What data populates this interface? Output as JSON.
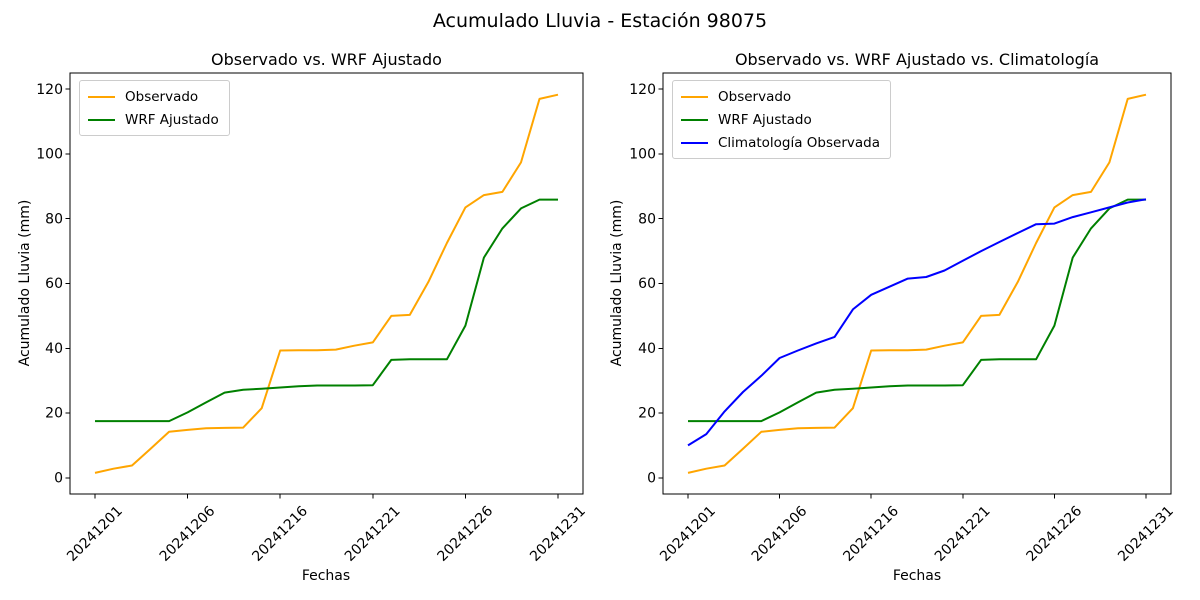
{
  "suptitle": "Acumulado Lluvia - Estación 98075",
  "background": "#ffffff",
  "text_color": "#000000",
  "chart_data": [
    {
      "type": "line",
      "title": "Observado vs. WRF Ajustado",
      "xlabel": "Fechas",
      "ylabel": "Acumulado Lluvia (mm)",
      "ylim": [
        -5,
        125
      ],
      "yticks": [
        0,
        20,
        40,
        60,
        80,
        100,
        120
      ],
      "xticks": {
        "positions": [
          0,
          5,
          10,
          15,
          20,
          25
        ],
        "labels": [
          "20241201",
          "20241206",
          "20241216",
          "20241221",
          "20241226",
          "20241231"
        ]
      },
      "x_count": 26,
      "grid": false,
      "legend_position": "upper-left",
      "tick_rotation": 45,
      "series": [
        {
          "name": "Observado",
          "color": "#FFA500",
          "values": [
            1.5,
            2.8,
            3.8,
            9.0,
            14.2,
            14.8,
            15.3,
            15.4,
            15.5,
            21.5,
            39.3,
            39.4,
            39.4,
            39.6,
            40.8,
            41.8,
            50.0,
            50.3,
            60.5,
            72.5,
            83.5,
            87.3,
            88.3,
            97.4,
            117.0,
            118.3
          ]
        },
        {
          "name": "WRF Ajustado",
          "color": "#008000",
          "values": [
            17.5,
            17.5,
            17.5,
            17.5,
            17.5,
            20.2,
            23.3,
            26.3,
            27.2,
            27.5,
            27.9,
            28.3,
            28.5,
            28.5,
            28.5,
            28.6,
            36.4,
            36.6,
            36.6,
            36.6,
            47.0,
            68.0,
            77.0,
            83.2,
            85.9,
            85.9
          ]
        }
      ]
    },
    {
      "type": "line",
      "title": "Observado vs. WRF Ajustado vs. Climatología",
      "xlabel": "Fechas",
      "ylabel": "Acumulado Lluvia (mm)",
      "ylim": [
        -5,
        125
      ],
      "yticks": [
        0,
        20,
        40,
        60,
        80,
        100,
        120
      ],
      "xticks": {
        "positions": [
          0,
          5,
          10,
          15,
          20,
          25
        ],
        "labels": [
          "20241201",
          "20241206",
          "20241216",
          "20241221",
          "20241226",
          "20241231"
        ]
      },
      "x_count": 26,
      "grid": false,
      "legend_position": "upper-left",
      "tick_rotation": 45,
      "series": [
        {
          "name": "Observado",
          "color": "#FFA500",
          "values": [
            1.5,
            2.8,
            3.8,
            9.0,
            14.2,
            14.8,
            15.3,
            15.4,
            15.5,
            21.5,
            39.3,
            39.4,
            39.4,
            39.6,
            40.8,
            41.8,
            50.0,
            50.3,
            60.5,
            72.5,
            83.5,
            87.3,
            88.3,
            97.4,
            117.0,
            118.3
          ]
        },
        {
          "name": "WRF Ajustado",
          "color": "#008000",
          "values": [
            17.5,
            17.5,
            17.5,
            17.5,
            17.5,
            20.2,
            23.3,
            26.3,
            27.2,
            27.5,
            27.9,
            28.3,
            28.5,
            28.5,
            28.5,
            28.6,
            36.4,
            36.6,
            36.6,
            36.6,
            47.0,
            68.0,
            77.0,
            83.2,
            85.9,
            85.9
          ]
        },
        {
          "name": "Climatología Observada",
          "color": "#0000FF",
          "values": [
            10.0,
            13.5,
            20.5,
            26.5,
            31.5,
            37.0,
            39.3,
            41.5,
            43.5,
            52.0,
            56.5,
            59.0,
            61.5,
            62.0,
            64.0,
            67.0,
            70.0,
            72.8,
            75.6,
            78.3,
            78.5,
            80.5,
            82.0,
            83.5,
            85.0,
            86.0
          ]
        }
      ]
    }
  ]
}
